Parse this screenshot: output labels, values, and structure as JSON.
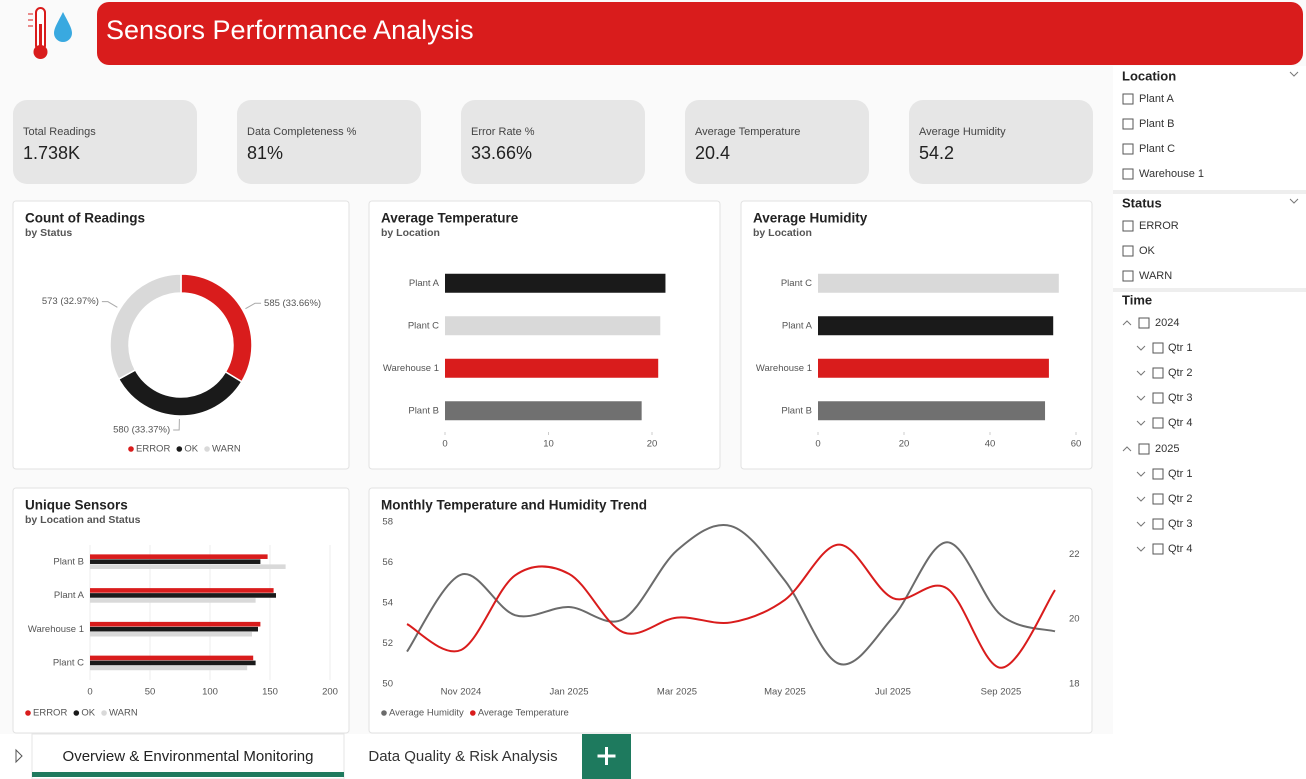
{
  "header": {
    "title": "Sensors Performance Analysis"
  },
  "kpis": [
    {
      "label": "Total Readings",
      "value": "1.738K"
    },
    {
      "label": "Data Completeness %",
      "value": "81%"
    },
    {
      "label": "Error Rate %",
      "value": "33.66%"
    },
    {
      "label": "Average Temperature",
      "value": "20.4"
    },
    {
      "label": "Average Humidity",
      "value": "54.2"
    }
  ],
  "charts": [
    {
      "type": "donut",
      "title": "Count of Readings",
      "subtitle": "by Status",
      "categories": [
        "ERROR",
        "OK",
        "WARN"
      ],
      "values": [
        585,
        580,
        573
      ],
      "value_labels": [
        "585 (33.66%)",
        "580 (33.37%)",
        "573 (32.97%)"
      ],
      "colors": [
        "#d91c1c",
        "#1a1a1a",
        "#d9d9d9"
      ]
    },
    {
      "type": "bar",
      "title": "Average Temperature",
      "subtitle": "by Location",
      "categories": [
        "Plant A",
        "Plant C",
        "Warehouse 1",
        "Plant B"
      ],
      "values": [
        21.3,
        20.8,
        20.6,
        19.0
      ],
      "colors": [
        "#1a1a1a",
        "#d9d9d9",
        "#d91c1c",
        "#707070"
      ],
      "xlim": [
        0,
        22
      ],
      "xticks": [
        0,
        10,
        20
      ]
    },
    {
      "type": "bar",
      "title": "Average Humidity",
      "subtitle": "by Location",
      "categories": [
        "Plant C",
        "Plant A",
        "Warehouse 1",
        "Plant B"
      ],
      "values": [
        56.0,
        54.7,
        53.7,
        52.8
      ],
      "colors": [
        "#d9d9d9",
        "#1a1a1a",
        "#d91c1c",
        "#707070"
      ],
      "xlim": [
        0,
        60
      ],
      "xticks": [
        0,
        20,
        40,
        60
      ]
    },
    {
      "type": "bar",
      "title": "Unique Sensors",
      "subtitle": "by Location and Status",
      "categories": [
        "Plant B",
        "Plant A",
        "Warehouse 1",
        "Plant C"
      ],
      "series": [
        {
          "name": "ERROR",
          "color": "#d91c1c",
          "values": [
            148,
            153,
            142,
            136
          ]
        },
        {
          "name": "OK",
          "color": "#1a1a1a",
          "values": [
            142,
            155,
            140,
            138
          ]
        },
        {
          "name": "WARN",
          "color": "#d9d9d9",
          "values": [
            163,
            138,
            135,
            131
          ]
        }
      ],
      "xlim": [
        0,
        200
      ],
      "xticks": [
        0,
        50,
        100,
        150,
        200
      ],
      "grid": true
    },
    {
      "type": "line",
      "title": "Monthly Temperature and Humidity Trend",
      "categories": [
        null,
        "Nov 2024",
        null,
        "Jan 2025",
        null,
        "Mar 2025",
        null,
        "May 2025",
        null,
        "Jul 2025",
        null,
        "Sep 2025",
        null
      ],
      "series": [
        {
          "name": "Average Humidity",
          "color": "#6b6b6b",
          "values": [
            51.6,
            55.4,
            53.4,
            53.8,
            53.2,
            56.6,
            57.8,
            55.1,
            51.0,
            53.3,
            57.0,
            53.4,
            52.6
          ]
        },
        {
          "name": "Average Temperature",
          "color": "#d91c1c",
          "axis": "y2",
          "values": [
            19.85,
            19.05,
            21.35,
            21.4,
            19.6,
            20.05,
            19.9,
            20.6,
            22.3,
            20.65,
            20.95,
            18.5,
            20.9
          ]
        }
      ],
      "ylim": [
        50,
        58
      ],
      "yticks": [
        50,
        52,
        54,
        56,
        58
      ],
      "y2lim": [
        18,
        23
      ],
      "y2ticks": [
        18,
        20,
        22
      ]
    }
  ],
  "slicers": {
    "location": {
      "title": "Location",
      "items": [
        "Plant A",
        "Plant B",
        "Plant C",
        "Warehouse 1"
      ]
    },
    "status": {
      "title": "Status",
      "items": [
        "ERROR",
        "OK",
        "WARN"
      ]
    },
    "time": {
      "title": "Time",
      "years": [
        {
          "label": "2024",
          "quarters": [
            "Qtr 1",
            "Qtr 2",
            "Qtr 3",
            "Qtr 4"
          ]
        },
        {
          "label": "2025",
          "quarters": [
            "Qtr 1",
            "Qtr 2",
            "Qtr 3",
            "Qtr 4"
          ]
        }
      ]
    }
  },
  "tabs": [
    "Overview & Environmental Monitoring",
    "Data Quality & Risk Analysis"
  ]
}
